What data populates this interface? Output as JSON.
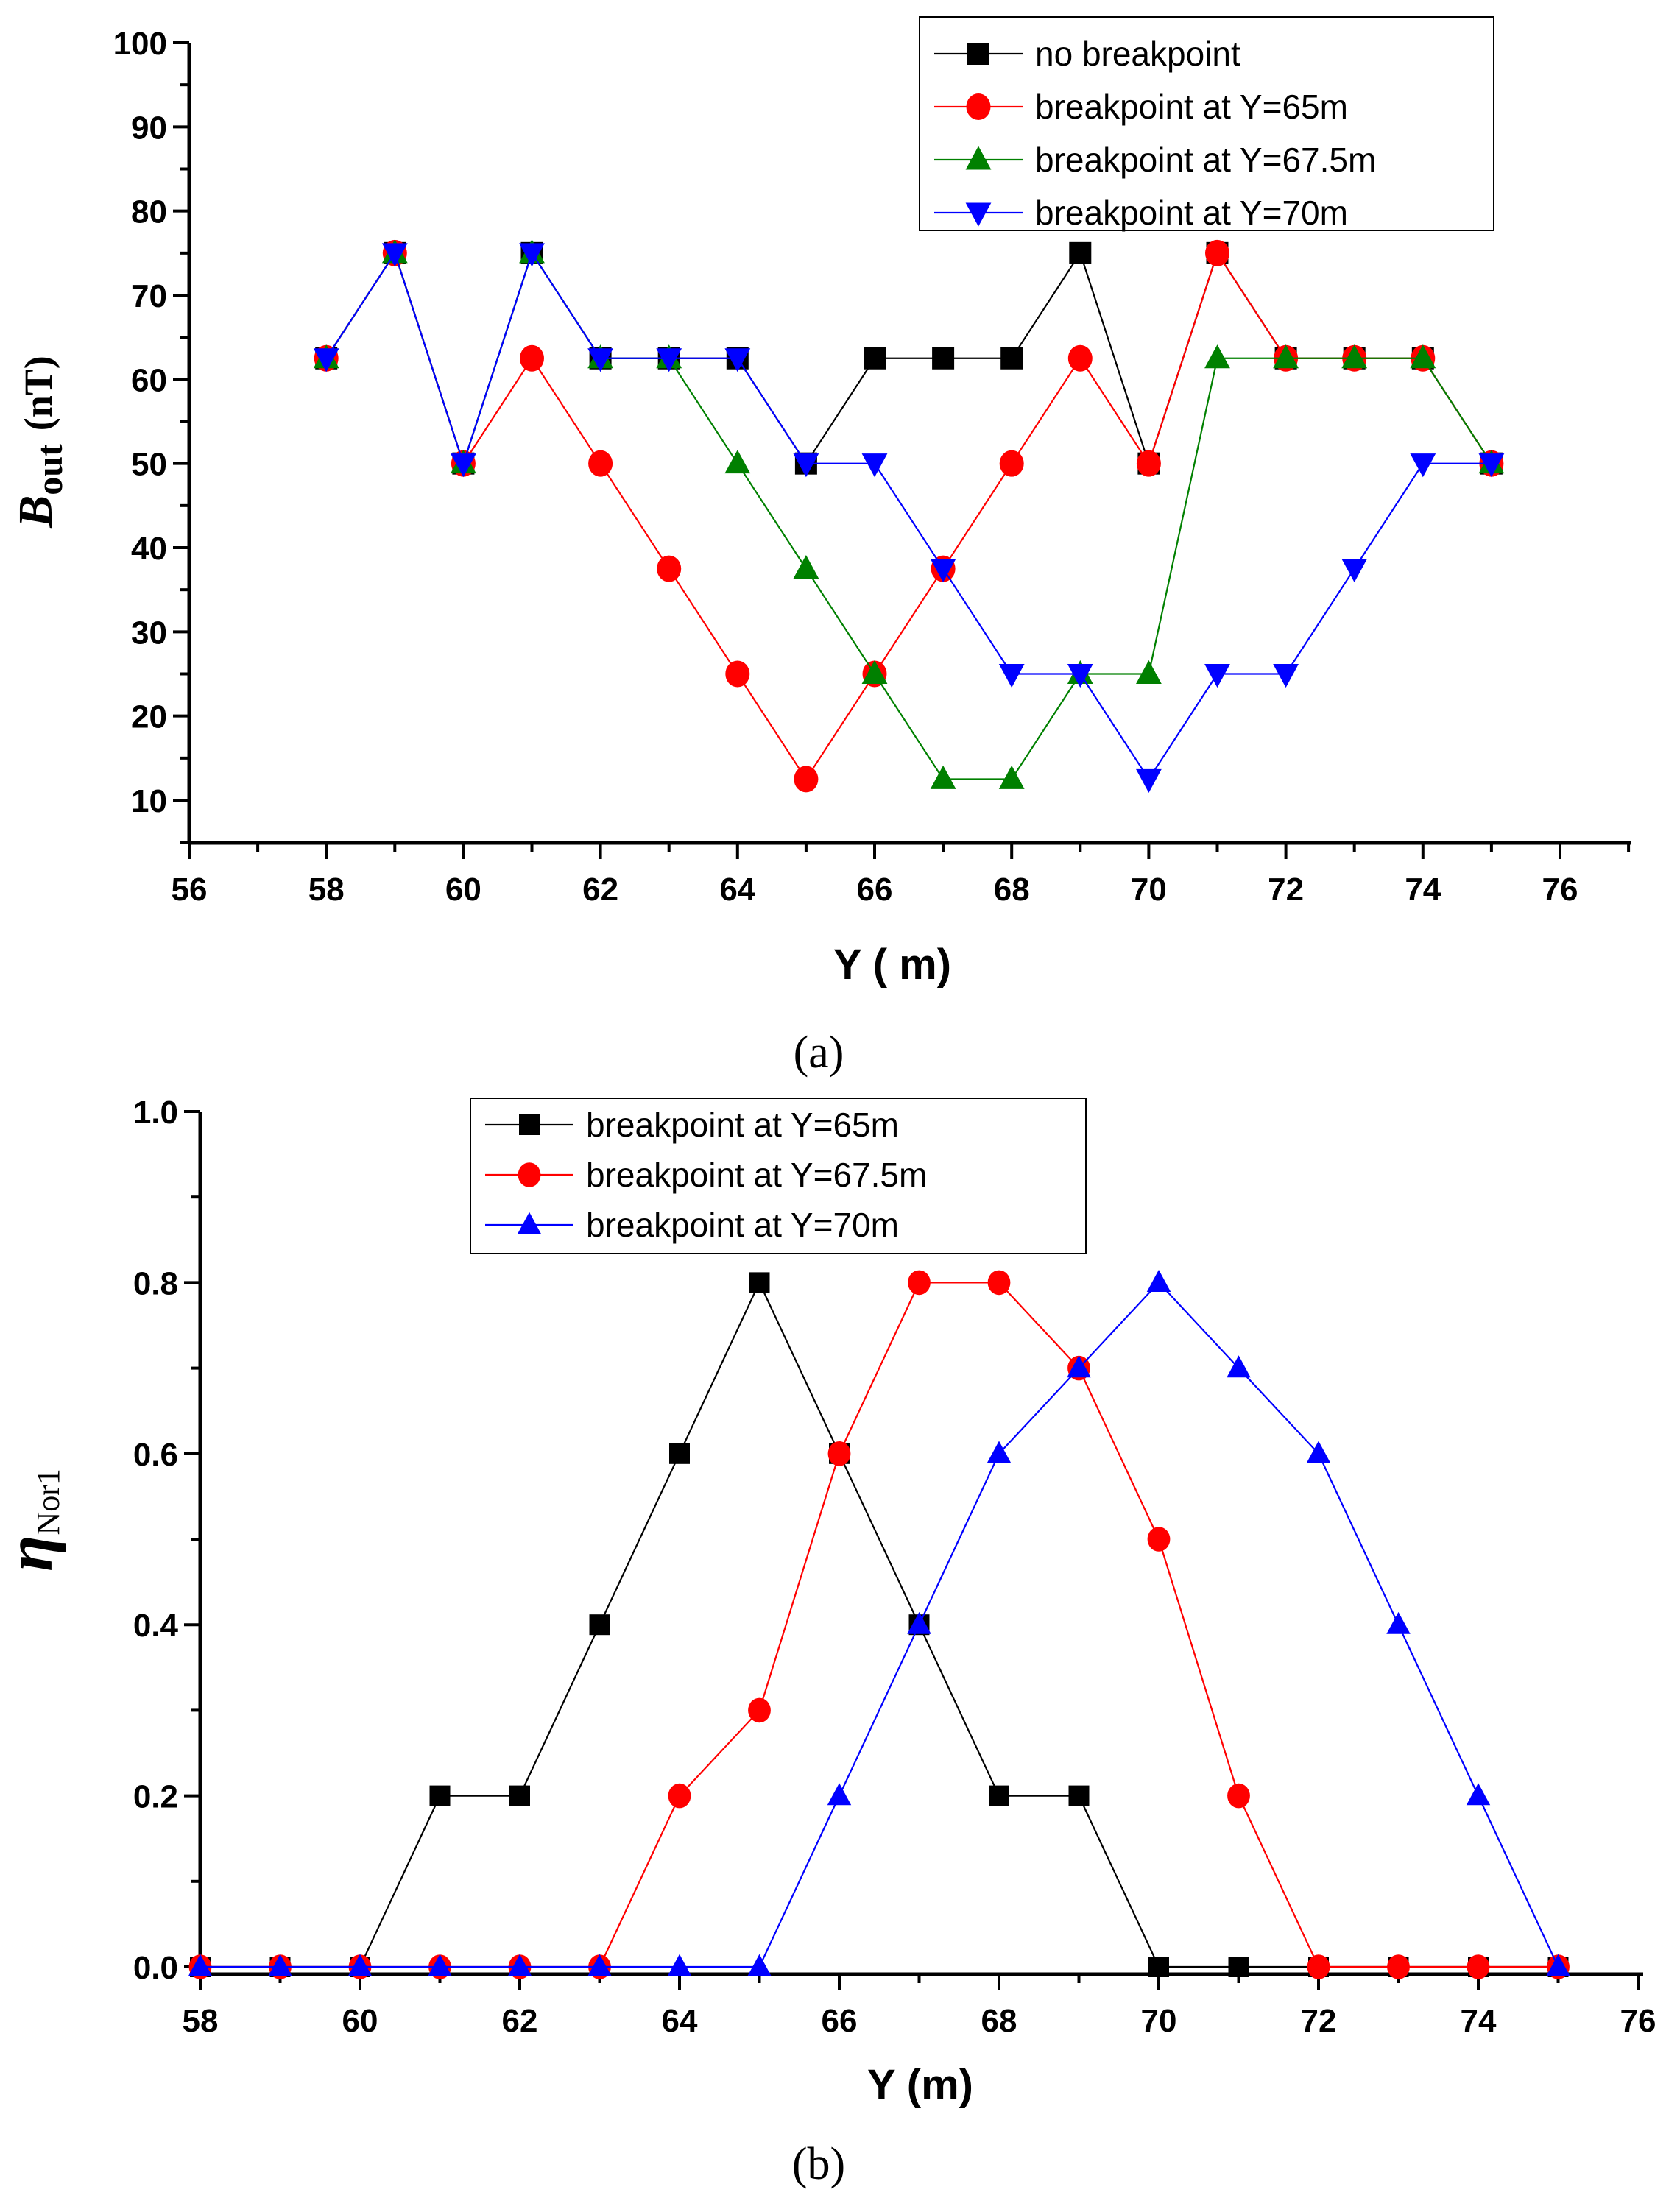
{
  "chart_data": [
    {
      "type": "line",
      "panel_label": "(a)",
      "xlabel": "Y (   m)",
      "ylabel_main": "B",
      "ylabel_sub": "out",
      "ylabel_unit": "(nT)",
      "xlim": [
        56,
        77
      ],
      "ylim": [
        5,
        100
      ],
      "xticks": [
        56,
        58,
        60,
        62,
        64,
        66,
        68,
        70,
        72,
        74,
        76
      ],
      "yticks": [
        10,
        20,
        30,
        40,
        50,
        60,
        70,
        80,
        90,
        100
      ],
      "legend_position": "top-right",
      "grid": false,
      "x": [
        58,
        59,
        60,
        61,
        62,
        63,
        64,
        65,
        66,
        67,
        68,
        69,
        70,
        71,
        72,
        73,
        74,
        75
      ],
      "series": [
        {
          "name": "no breakpoint",
          "color": "#000000",
          "marker": "square",
          "values": [
            62.5,
            75,
            50,
            75,
            62.5,
            62.5,
            62.5,
            50,
            62.5,
            62.5,
            62.5,
            75,
            50,
            75,
            62.5,
            62.5,
            62.5,
            50
          ]
        },
        {
          "name": "breakpoint at Y=65m",
          "color": "#ff0000",
          "marker": "circle",
          "values": [
            62.5,
            75,
            50,
            62.5,
            50,
            37.5,
            25,
            12.5,
            25,
            37.5,
            50,
            62.5,
            50,
            75,
            62.5,
            62.5,
            62.5,
            50
          ]
        },
        {
          "name": "breakpoint at Y=67.5m",
          "color": "#008000",
          "marker": "triangle-up",
          "values": [
            62.5,
            75,
            50,
            75,
            62.5,
            62.5,
            50,
            37.5,
            25,
            12.5,
            12.5,
            25,
            25,
            62.5,
            62.5,
            62.5,
            62.5,
            50
          ]
        },
        {
          "name": "breakpoint at Y=70m",
          "color": "#0000ff",
          "marker": "triangle-down",
          "values": [
            62.5,
            75,
            50,
            75,
            62.5,
            62.5,
            62.5,
            50,
            50,
            37.5,
            25,
            25,
            12.5,
            25,
            25,
            37.5,
            50,
            50
          ]
        }
      ]
    },
    {
      "type": "line",
      "panel_label": "(b)",
      "xlabel": "Y (m)",
      "ylabel_main": "η",
      "ylabel_sub": "Nor1",
      "xlim": [
        58,
        76
      ],
      "ylim": [
        0,
        1.0
      ],
      "xticks": [
        58,
        60,
        62,
        64,
        66,
        68,
        70,
        72,
        74,
        76
      ],
      "yticks": [
        "0.0",
        "0.2",
        "0.4",
        "0.6",
        "0.8",
        "1.0"
      ],
      "legend_position": "top-left",
      "grid": false,
      "x": [
        58,
        59,
        60,
        61,
        62,
        63,
        64,
        65,
        66,
        67,
        68,
        69,
        70,
        71,
        72,
        73,
        74,
        75
      ],
      "series": [
        {
          "name": "breakpoint at Y=65m",
          "color": "#000000",
          "marker": "square",
          "values": [
            0,
            0,
            0,
            0.2,
            0.2,
            0.4,
            0.6,
            0.8,
            0.6,
            0.4,
            0.2,
            0.2,
            0,
            0,
            0,
            0,
            0,
            0
          ]
        },
        {
          "name": "breakpoint at Y=67.5m",
          "color": "#ff0000",
          "marker": "circle",
          "values": [
            0,
            0,
            0,
            0,
            0,
            0,
            0.2,
            0.3,
            0.6,
            0.8,
            0.8,
            0.7,
            0.5,
            0.2,
            0,
            0,
            0,
            0
          ]
        },
        {
          "name": "breakpoint at Y=70m",
          "color": "#0000ff",
          "marker": "triangle-up",
          "values": [
            0,
            0,
            0,
            0,
            0,
            0,
            0,
            0,
            0.2,
            0.4,
            0.6,
            0.7,
            0.8,
            0.7,
            0.6,
            0.4,
            0.2,
            0
          ]
        }
      ]
    }
  ]
}
